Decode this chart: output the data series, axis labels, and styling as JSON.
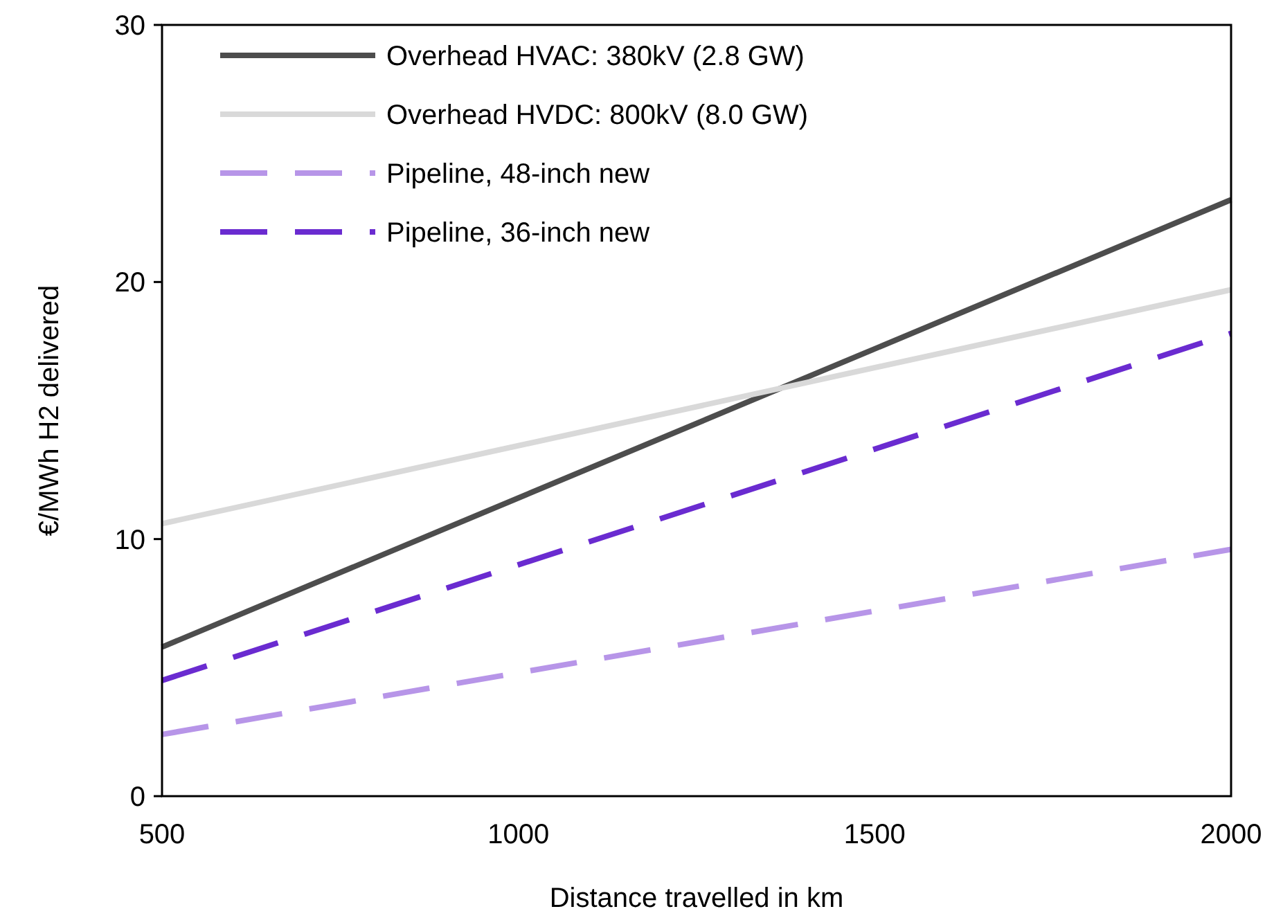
{
  "chart_data": {
    "type": "line",
    "xlabel": "Distance travelled in km",
    "ylabel": "€/MWh H2 delivered",
    "x": [
      500,
      2000
    ],
    "xlim": [
      500,
      2000
    ],
    "xticks": [
      500,
      1000,
      1500,
      2000
    ],
    "ylim": [
      0,
      30
    ],
    "yticks": [
      0,
      10,
      20,
      30
    ],
    "legend": "top left",
    "grid": false,
    "marker": "none",
    "series": [
      {
        "name": "Overhead HVAC: 380kV (2.8 GW)",
        "color": "#4d4d4d",
        "values": [
          5.8,
          23.2
        ],
        "line_style": "solid"
      },
      {
        "name": "Overhead HVDC: 800kV (8.0 GW)",
        "color": "#d9d9d9",
        "values": [
          10.6,
          19.7
        ],
        "line_style": "solid"
      },
      {
        "name": "Pipeline, 48-inch new",
        "color": "#b795e8",
        "values": [
          2.4,
          9.6
        ],
        "line_style": "dashed"
      },
      {
        "name": "Pipeline, 36-inch new",
        "color": "#6a2bd0",
        "values": [
          4.5,
          18.0
        ],
        "line_style": "dashed"
      }
    ]
  }
}
